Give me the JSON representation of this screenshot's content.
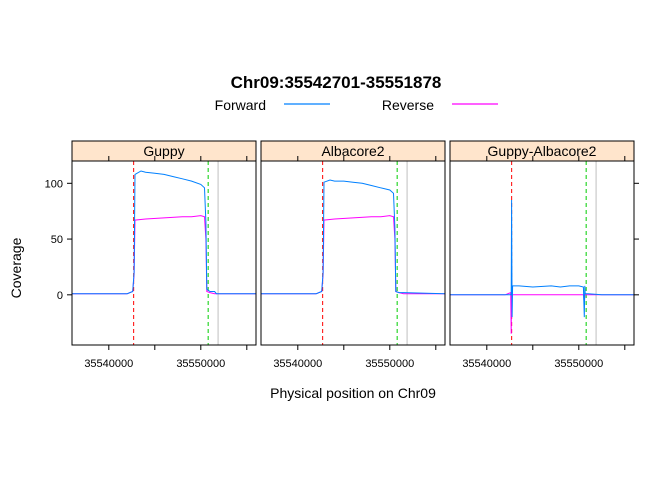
{
  "chart_data": {
    "type": "line",
    "title": "Chr09:35542701-35551878",
    "xlabel": "Physical position on Chr09",
    "ylabel": "Coverage",
    "xlim": [
      35536000,
      35556000
    ],
    "ylim": [
      -45,
      120
    ],
    "xticks": [
      35540000,
      35550000
    ],
    "yticks": [
      0,
      50,
      100
    ],
    "legend": {
      "placement": "top",
      "entries": [
        {
          "name": "Forward",
          "color": "#0080ff"
        },
        {
          "name": "Reverse",
          "color": "#ff00ff"
        }
      ]
    },
    "vlines": [
      {
        "x": 35542701,
        "color": "#ff0000",
        "style": "dashed"
      },
      {
        "x": 35550800,
        "color": "#00cc00",
        "style": "dashed"
      },
      {
        "x": 35551878,
        "color": "#bebebe",
        "style": "solid"
      }
    ],
    "panels": [
      {
        "name": "Guppy",
        "series": [
          {
            "name": "Forward",
            "color": "#0080ff",
            "points": [
              [
                35536000,
                1
              ],
              [
                35542000,
                1
              ],
              [
                35542600,
                3
              ],
              [
                35542750,
                20
              ],
              [
                35542850,
                108
              ],
              [
                35543500,
                111
              ],
              [
                35544000,
                110
              ],
              [
                35545000,
                109
              ],
              [
                35546000,
                108
              ],
              [
                35547000,
                106
              ],
              [
                35548000,
                104
              ],
              [
                35549000,
                102
              ],
              [
                35550000,
                99
              ],
              [
                35550400,
                96
              ],
              [
                35550550,
                65
              ],
              [
                35550650,
                5
              ],
              [
                35551000,
                3
              ],
              [
                35551500,
                3
              ],
              [
                35551700,
                1
              ],
              [
                35556000,
                1
              ]
            ]
          },
          {
            "name": "Reverse",
            "color": "#ff00ff",
            "points": [
              [
                35536000,
                1
              ],
              [
                35542000,
                1
              ],
              [
                35542600,
                3
              ],
              [
                35542750,
                18
              ],
              [
                35542850,
                67
              ],
              [
                35544000,
                68
              ],
              [
                35546000,
                69
              ],
              [
                35548000,
                70
              ],
              [
                35549000,
                70
              ],
              [
                35550000,
                71
              ],
              [
                35550400,
                70
              ],
              [
                35550550,
                50
              ],
              [
                35550650,
                3
              ],
              [
                35551000,
                2
              ],
              [
                35551500,
                1
              ],
              [
                35556000,
                1
              ]
            ]
          }
        ]
      },
      {
        "name": "Albacore2",
        "series": [
          {
            "name": "Forward",
            "color": "#0080ff",
            "points": [
              [
                35536000,
                1
              ],
              [
                35542000,
                1
              ],
              [
                35542600,
                3
              ],
              [
                35542750,
                20
              ],
              [
                35542850,
                101
              ],
              [
                35543500,
                103
              ],
              [
                35544000,
                102
              ],
              [
                35545000,
                102
              ],
              [
                35546000,
                101
              ],
              [
                35547000,
                100
              ],
              [
                35548000,
                98
              ],
              [
                35549000,
                96
              ],
              [
                35550000,
                94
              ],
              [
                35550400,
                91
              ],
              [
                35550550,
                60
              ],
              [
                35550650,
                3
              ],
              [
                35551000,
                2
              ],
              [
                35551500,
                2
              ],
              [
                35556000,
                1
              ]
            ]
          },
          {
            "name": "Reverse",
            "color": "#ff00ff",
            "points": [
              [
                35536000,
                1
              ],
              [
                35542000,
                1
              ],
              [
                35542600,
                3
              ],
              [
                35542750,
                18
              ],
              [
                35542850,
                67
              ],
              [
                35544000,
                68
              ],
              [
                35546000,
                69
              ],
              [
                35548000,
                70
              ],
              [
                35549000,
                70
              ],
              [
                35550000,
                71
              ],
              [
                35550400,
                70
              ],
              [
                35550550,
                50
              ],
              [
                35550650,
                3
              ],
              [
                35551000,
                2
              ],
              [
                35551500,
                1
              ],
              [
                35556000,
                1
              ]
            ]
          }
        ]
      },
      {
        "name": "Guppy-Albacore2",
        "series": [
          {
            "name": "Forward",
            "color": "#0080ff",
            "points": [
              [
                35536000,
                0
              ],
              [
                35542000,
                0
              ],
              [
                35542650,
                0
              ],
              [
                35542700,
                85
              ],
              [
                35542750,
                -20
              ],
              [
                35542800,
                8
              ],
              [
                35543500,
                8
              ],
              [
                35545000,
                7
              ],
              [
                35547000,
                8
              ],
              [
                35548000,
                7
              ],
              [
                35549000,
                8
              ],
              [
                35550000,
                8
              ],
              [
                35550500,
                7
              ],
              [
                35550600,
                -20
              ],
              [
                35550650,
                8
              ],
              [
                35550700,
                1
              ],
              [
                35551000,
                1
              ],
              [
                35552500,
                0
              ],
              [
                35556000,
                0
              ]
            ]
          },
          {
            "name": "Reverse",
            "color": "#ff00ff",
            "points": [
              [
                35536000,
                0
              ],
              [
                35542000,
                0
              ],
              [
                35542600,
                2
              ],
              [
                35542650,
                -35
              ],
              [
                35542700,
                0
              ],
              [
                35542800,
                0
              ],
              [
                35545000,
                0
              ],
              [
                35547000,
                0
              ],
              [
                35548000,
                0
              ],
              [
                35550000,
                0
              ],
              [
                35550500,
                0
              ],
              [
                35550600,
                -8
              ],
              [
                35550650,
                0
              ],
              [
                35551000,
                0
              ],
              [
                35556000,
                0
              ]
            ]
          }
        ]
      }
    ]
  }
}
